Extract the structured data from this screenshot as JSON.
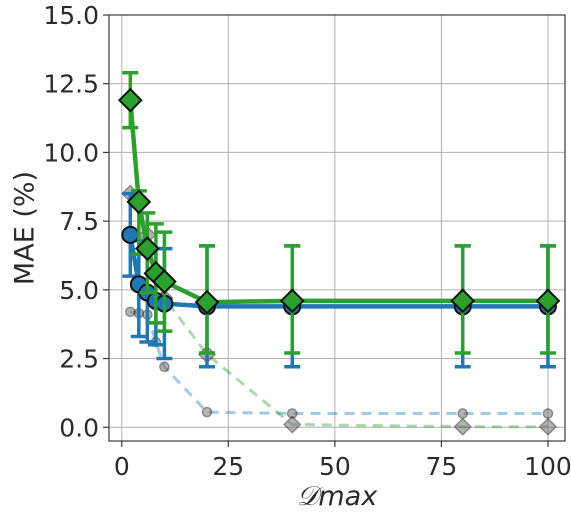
{
  "chart_data": {
    "type": "line",
    "title": "",
    "xlabel": "𝒟max",
    "ylabel": "MAE (%)",
    "xlim": [
      -3,
      104
    ],
    "ylim": [
      -0.5,
      15.0
    ],
    "xticks": [
      0,
      25,
      50,
      75,
      100
    ],
    "yticks": [
      0.0,
      2.5,
      5.0,
      7.5,
      10.0,
      12.5,
      15.0
    ],
    "xtick_labels": [
      "0",
      "25",
      "50",
      "75",
      "100"
    ],
    "ytick_labels": [
      "0.0",
      "2.5",
      "5.0",
      "7.5",
      "10.0",
      "12.5",
      "15.0"
    ],
    "grid": true,
    "legend": "none",
    "series": [
      {
        "style": "dashed-faded",
        "marker": "circle",
        "color": "#1f77b4",
        "x": [
          2,
          4,
          6,
          8,
          10,
          20,
          40,
          80,
          100
        ],
        "y": [
          4.2,
          4.15,
          4.1,
          3.1,
          2.2,
          0.55,
          0.5,
          0.5,
          0.5
        ]
      },
      {
        "style": "dashed-faded",
        "marker": "diamond",
        "color": "#2ca02c",
        "x": [
          2,
          4,
          6,
          8,
          10,
          20,
          40,
          80,
          100
        ],
        "y": [
          8.5,
          8.3,
          7.0,
          5.6,
          4.7,
          2.65,
          0.1,
          0.02,
          0.02
        ]
      },
      {
        "style": "solid",
        "marker": "circle",
        "color": "#1f77b4",
        "x": [
          2,
          4,
          6,
          8,
          10,
          20,
          40,
          80,
          100
        ],
        "y": [
          7.0,
          5.2,
          4.9,
          4.6,
          4.5,
          4.4,
          4.4,
          4.4,
          4.4
        ],
        "err_low": [
          5.5,
          3.3,
          3.1,
          3.0,
          2.5,
          2.2,
          2.2,
          2.2,
          2.2
        ],
        "err_high": [
          8.5,
          6.8,
          6.6,
          6.5,
          6.5,
          6.6,
          6.6,
          6.6,
          6.6
        ]
      },
      {
        "style": "solid",
        "marker": "diamond",
        "color": "#2ca02c",
        "x": [
          2,
          4,
          6,
          8,
          10,
          20,
          40,
          80,
          100
        ],
        "y": [
          11.9,
          8.2,
          6.5,
          5.6,
          5.3,
          4.55,
          4.6,
          4.6,
          4.6
        ],
        "err_low": [
          10.9,
          6.3,
          4.9,
          3.8,
          3.5,
          2.7,
          2.7,
          2.7,
          2.7
        ],
        "err_high": [
          12.9,
          8.6,
          7.8,
          7.4,
          7.1,
          6.6,
          6.6,
          6.6,
          6.6
        ]
      }
    ]
  }
}
